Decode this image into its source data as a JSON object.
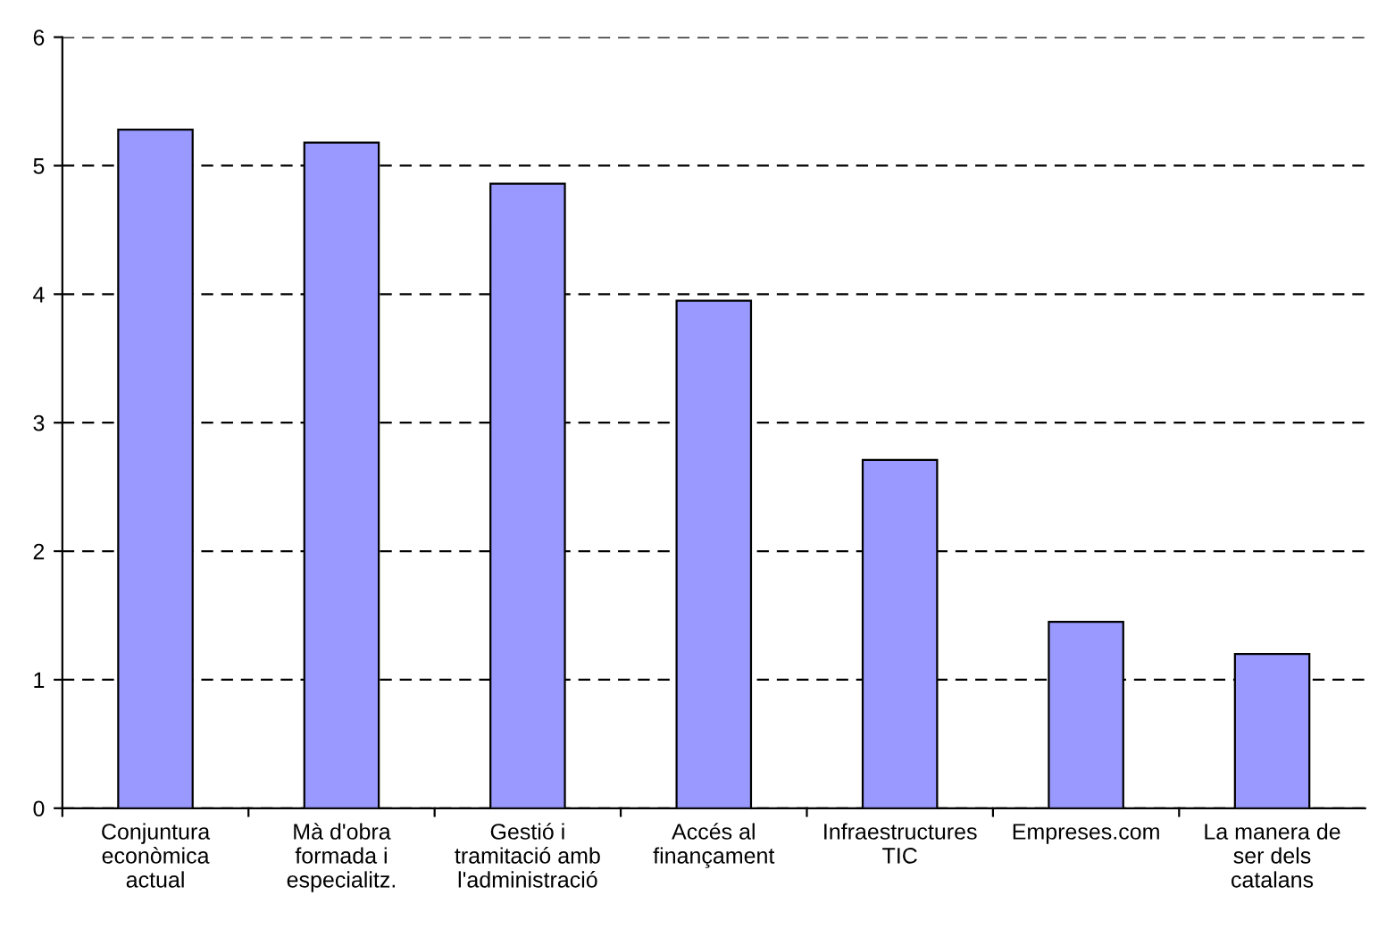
{
  "chart_data": {
    "type": "bar",
    "categories": [
      "Conjuntura\neconòmica\nactual",
      "Mà d'obra\nformada i\nespecialitz.",
      "Gestió i\ntramitació amb\nl'administració",
      "Accés al\nfinançament",
      "Infraestructures\nTIC",
      "Empreses.com",
      "La manera de\nser dels\ncatalans"
    ],
    "values": [
      5.28,
      5.18,
      4.86,
      3.95,
      2.71,
      1.45,
      1.2
    ],
    "color": "#9999ff",
    "ylim": [
      0,
      6
    ],
    "yticks": [
      0,
      1,
      2,
      3,
      4,
      5,
      6
    ],
    "grid": "y",
    "line_style": "dashed"
  }
}
